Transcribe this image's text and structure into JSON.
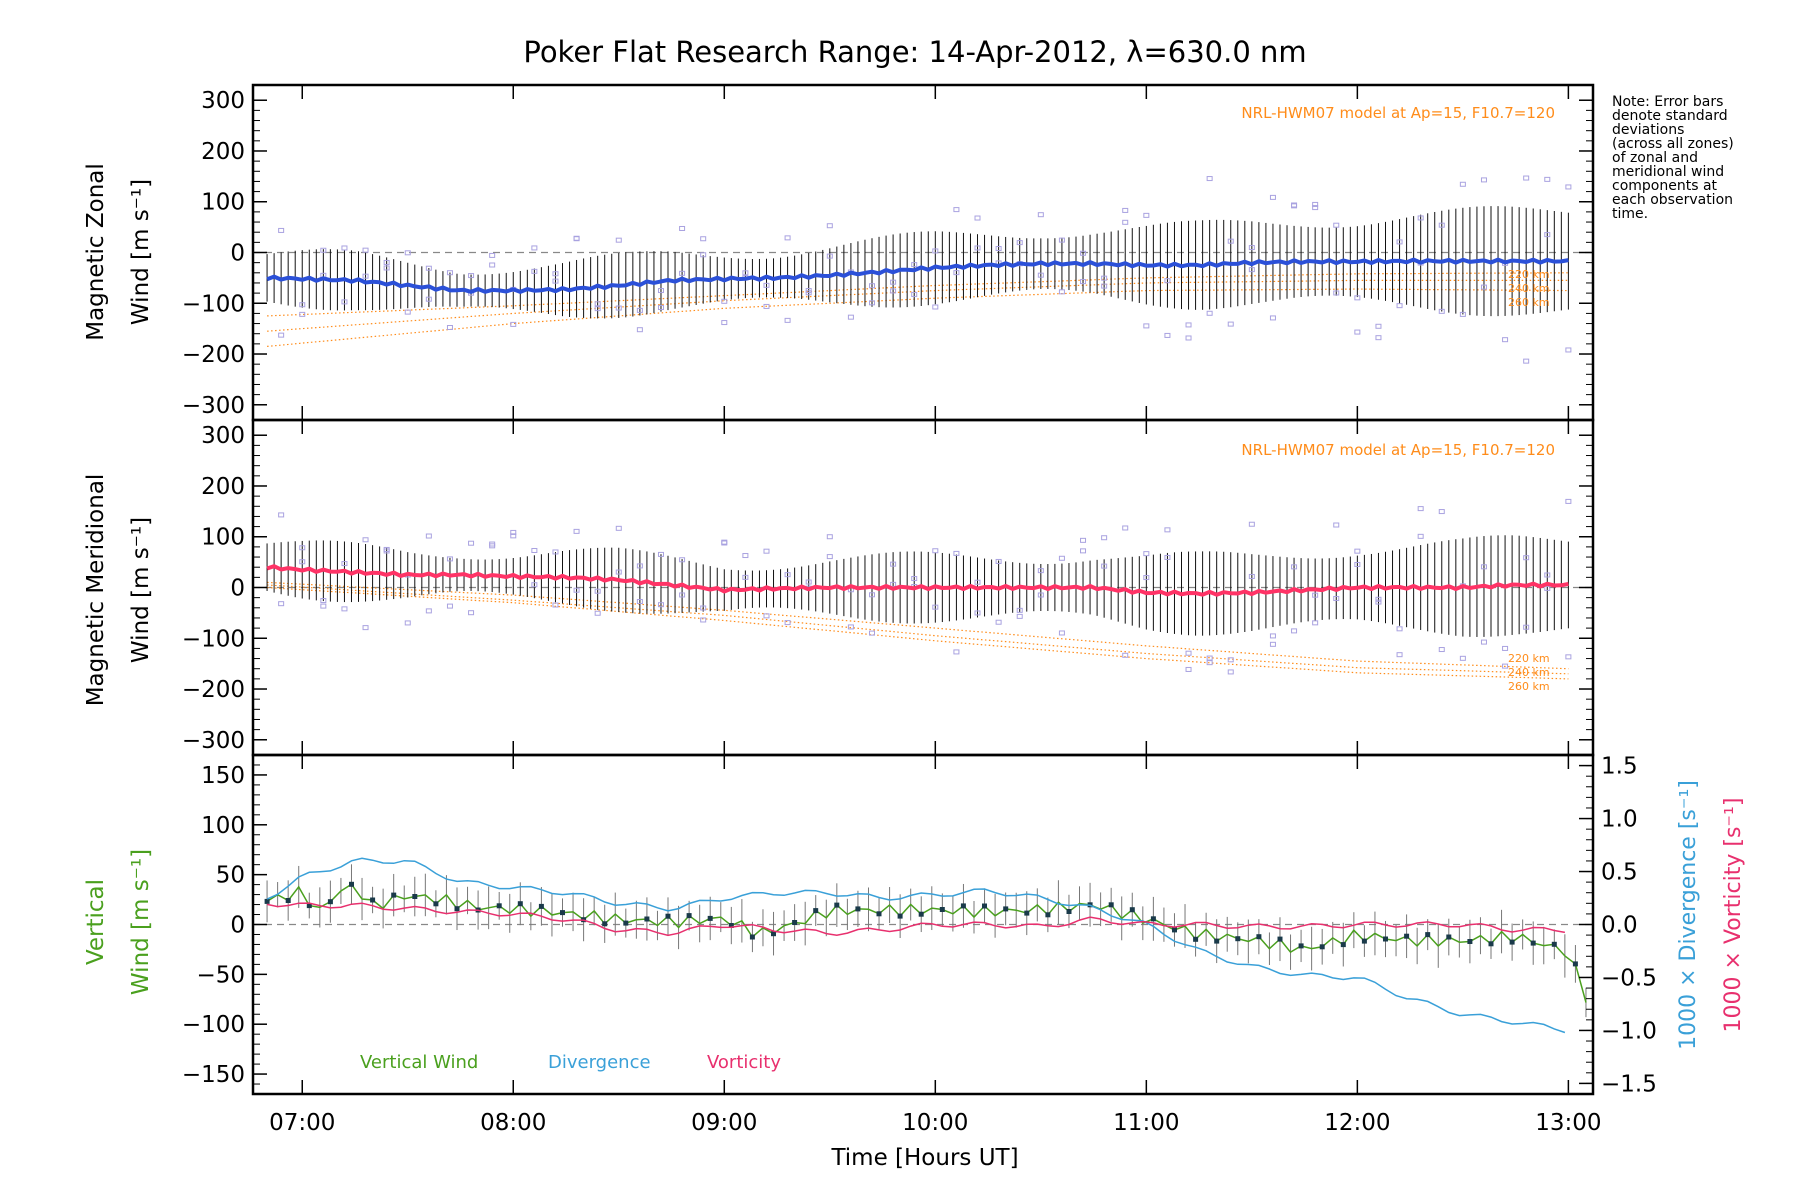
{
  "figure": {
    "title": "Poker Flat Research Range: 14-Apr-2012, λ=630.0 nm",
    "note_lines": [
      "Note: Error bars",
      "denote standard",
      "deviations",
      "(across all zones)",
      "of zonal and",
      "meridional wind",
      "components at",
      "each observation",
      "time."
    ],
    "xlabel": "Time [Hours UT]",
    "xticks": [
      "07:00",
      "08:00",
      "09:00",
      "10:00",
      "11:00",
      "12:00",
      "13:00"
    ],
    "colors": {
      "zonal": "#2b50d8",
      "meridional": "#ff3366",
      "vertical": "#4aa01e",
      "divergence": "#3aa0d8",
      "vorticity": "#e8306e",
      "model": "#ff8c1a",
      "scatter": "#a9a2e0",
      "errbar": "#111111"
    }
  },
  "chart_data": [
    {
      "type": "line",
      "id": "zonal",
      "ylabel": [
        "Magnetic Zonal",
        "Wind [m s⁻¹]"
      ],
      "ylim": [
        -330,
        330
      ],
      "yticks": [
        300,
        200,
        100,
        0,
        -100,
        -200,
        -300
      ],
      "xlim": [
        "06:46",
        "13:07"
      ],
      "model_label": "NRL-HWM07 model at Ap=15, F10.7=120",
      "model_heights": [
        "220 km",
        "240 km",
        "260 km"
      ],
      "series": [
        {
          "name": "Magnetic Zonal Wind",
          "x": [
            "06:50",
            "07:00",
            "07:15",
            "07:30",
            "07:45",
            "08:00",
            "08:15",
            "08:30",
            "08:45",
            "09:00",
            "09:15",
            "09:30",
            "09:45",
            "10:00",
            "10:15",
            "10:30",
            "10:45",
            "11:00",
            "11:15",
            "11:30",
            "11:45",
            "12:00",
            "12:15",
            "12:30",
            "12:45",
            "13:00"
          ],
          "values": [
            -50,
            -52,
            -55,
            -65,
            -75,
            -75,
            -73,
            -65,
            -55,
            -52,
            -50,
            -45,
            -38,
            -30,
            -25,
            -22,
            -22,
            -25,
            -25,
            -20,
            -18,
            -18,
            -17,
            -17,
            -17,
            -17
          ]
        }
      ],
      "model": [
        {
          "height": "220 km",
          "x": [
            "06:50",
            "08:00",
            "09:00",
            "10:00",
            "11:00",
            "12:00",
            "13:00"
          ],
          "values": [
            -125,
            -105,
            -85,
            -65,
            -50,
            -42,
            -40
          ]
        },
        {
          "height": "240 km",
          "x": [
            "06:50",
            "08:00",
            "09:00",
            "10:00",
            "11:00",
            "12:00",
            "13:00"
          ],
          "values": [
            -155,
            -120,
            -95,
            -75,
            -60,
            -55,
            -55
          ]
        },
        {
          "height": "260 km",
          "x": [
            "06:50",
            "08:00",
            "09:00",
            "10:00",
            "11:00",
            "12:00",
            "13:00"
          ],
          "values": [
            -185,
            -140,
            -110,
            -90,
            -75,
            -72,
            -75
          ]
        }
      ]
    },
    {
      "type": "line",
      "id": "meridional",
      "ylabel": [
        "Magnetic Meridional",
        "Wind [m s⁻¹]"
      ],
      "ylim": [
        -330,
        330
      ],
      "yticks": [
        300,
        200,
        100,
        0,
        -100,
        -200,
        -300
      ],
      "xlim": [
        "06:46",
        "13:07"
      ],
      "model_label": "NRL-HWM07 model at Ap=15, F10.7=120",
      "model_heights": [
        "220 km",
        "240 km",
        "260 km"
      ],
      "series": [
        {
          "name": "Magnetic Meridional Wind",
          "x": [
            "06:50",
            "07:00",
            "07:15",
            "07:30",
            "07:45",
            "08:00",
            "08:15",
            "08:30",
            "08:45",
            "09:00",
            "09:15",
            "09:30",
            "09:45",
            "10:00",
            "10:15",
            "10:30",
            "10:45",
            "11:00",
            "11:15",
            "11:30",
            "11:45",
            "12:00",
            "12:15",
            "12:30",
            "12:45",
            "13:00"
          ],
          "values": [
            40,
            35,
            30,
            25,
            25,
            22,
            20,
            15,
            5,
            -5,
            -2,
            0,
            0,
            0,
            0,
            0,
            0,
            -10,
            -12,
            -10,
            -5,
            0,
            0,
            0,
            5,
            5
          ]
        }
      ],
      "model": [
        {
          "height": "220 km",
          "x": [
            "06:50",
            "08:00",
            "09:00",
            "10:00",
            "11:00",
            "12:00",
            "13:00"
          ],
          "values": [
            10,
            -15,
            -45,
            -80,
            -115,
            -145,
            -160
          ]
        },
        {
          "height": "240 km",
          "x": [
            "06:50",
            "08:00",
            "09:00",
            "10:00",
            "11:00",
            "12:00",
            "13:00"
          ],
          "values": [
            5,
            -25,
            -55,
            -95,
            -130,
            -158,
            -170
          ]
        },
        {
          "height": "260 km",
          "x": [
            "06:50",
            "08:00",
            "09:00",
            "10:00",
            "11:00",
            "12:00",
            "13:00"
          ],
          "values": [
            0,
            -30,
            -65,
            -105,
            -140,
            -168,
            -180
          ]
        }
      ]
    },
    {
      "type": "line",
      "id": "vertical",
      "ylabel_left": [
        "Vertical",
        "Wind [m s⁻¹]"
      ],
      "ylabel_right1": "1000 × Divergence [s⁻¹]",
      "ylabel_right2": "1000 × Vorticity [s⁻¹]",
      "ylim": [
        -170,
        170
      ],
      "yticks": [
        150,
        100,
        50,
        0,
        -50,
        -100,
        -150
      ],
      "ylim_right": [
        -1.6,
        1.6
      ],
      "yticks_right": [
        "1.5",
        "1.0",
        "0.5",
        "0.0",
        "-0.5",
        "-1.0",
        "-1.5"
      ],
      "xlim": [
        "06:46",
        "13:07"
      ],
      "legend": [
        "Vertical Wind",
        "Divergence",
        "Vorticity"
      ],
      "series": [
        {
          "name": "Vertical Wind",
          "axis": "left",
          "x": [
            "06:50",
            "07:00",
            "07:05",
            "07:10",
            "07:15",
            "07:20",
            "07:30",
            "07:40",
            "07:50",
            "08:00",
            "08:15",
            "08:30",
            "08:45",
            "09:00",
            "09:10",
            "09:20",
            "09:30",
            "09:45",
            "10:00",
            "10:15",
            "10:30",
            "10:45",
            "11:00",
            "11:15",
            "11:30",
            "11:45",
            "12:00",
            "12:15",
            "12:30",
            "12:45",
            "13:00",
            "13:05"
          ],
          "values": [
            22,
            30,
            10,
            30,
            35,
            15,
            25,
            20,
            12,
            10,
            5,
            -2,
            -5,
            -2,
            -18,
            -8,
            5,
            5,
            5,
            3,
            5,
            10,
            -5,
            -20,
            -25,
            -35,
            -20,
            -25,
            -25,
            -20,
            -35,
            -80
          ]
        },
        {
          "name": "Divergence",
          "axis": "right",
          "x": [
            "06:50",
            "07:00",
            "07:15",
            "07:30",
            "07:45",
            "08:00",
            "08:15",
            "08:30",
            "08:45",
            "09:00",
            "09:15",
            "09:30",
            "09:45",
            "10:00",
            "10:15",
            "10:30",
            "10:45",
            "11:00",
            "11:15",
            "11:30",
            "11:45",
            "12:00",
            "12:15",
            "12:30",
            "12:45",
            "13:00"
          ],
          "values": [
            0.25,
            0.45,
            0.6,
            0.6,
            0.4,
            0.35,
            0.3,
            0.2,
            0.15,
            0.25,
            0.3,
            0.3,
            0.25,
            0.28,
            0.32,
            0.25,
            0.15,
            0.0,
            -0.25,
            -0.4,
            -0.48,
            -0.5,
            -0.7,
            -0.85,
            -0.92,
            -1.0
          ]
        },
        {
          "name": "Vorticity",
          "axis": "right",
          "x": [
            "06:50",
            "07:00",
            "07:15",
            "07:30",
            "07:45",
            "08:00",
            "08:15",
            "08:30",
            "08:45",
            "09:00",
            "09:15",
            "09:30",
            "09:45",
            "10:00",
            "10:15",
            "10:30",
            "10:45",
            "11:00",
            "11:15",
            "11:30",
            "11:45",
            "12:00",
            "12:15",
            "12:30",
            "12:45",
            "13:00"
          ],
          "values": [
            0.2,
            0.18,
            0.18,
            0.15,
            0.12,
            0.1,
            0.05,
            -0.05,
            -0.08,
            0.0,
            -0.05,
            -0.08,
            -0.05,
            0.0,
            0.0,
            -0.02,
            0.05,
            0.0,
            0.0,
            -0.02,
            -0.02,
            0.0,
            0.0,
            0.0,
            -0.05,
            -0.05
          ]
        }
      ]
    }
  ]
}
